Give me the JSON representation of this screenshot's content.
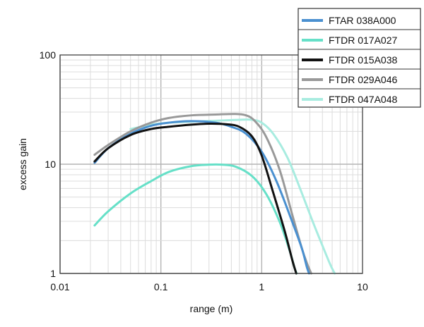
{
  "chart_data": {
    "type": "line",
    "xlabel": "range (m)",
    "ylabel": "excess gain",
    "x_scale": "log",
    "y_scale": "log",
    "xlim": [
      0.01,
      10
    ],
    "ylim": [
      1,
      100
    ],
    "x_ticks": [
      {
        "value": 0.01,
        "label": "0.01"
      },
      {
        "value": 0.1,
        "label": "0.1"
      },
      {
        "value": 1,
        "label": "1"
      },
      {
        "value": 10,
        "label": "10"
      }
    ],
    "y_ticks": [
      {
        "value": 1,
        "label": "1"
      },
      {
        "value": 10,
        "label": "10"
      },
      {
        "value": 100,
        "label": "100"
      }
    ],
    "grid": true,
    "legend_position": "top-right",
    "series": [
      {
        "name": "FTAR 038A000",
        "color": "#4a90d0",
        "x": [
          0.022,
          0.03,
          0.05,
          0.08,
          0.12,
          0.2,
          0.35,
          0.5,
          0.7,
          1.0,
          1.4,
          2.0,
          2.5,
          2.8,
          2.95
        ],
        "y": [
          10.3,
          14,
          19,
          22.5,
          24,
          24.8,
          24,
          22,
          19,
          13,
          7,
          3,
          1.7,
          1.15,
          1
        ]
      },
      {
        "name": "FTDR 017A027",
        "color": "#66e0c8",
        "x": [
          0.022,
          0.03,
          0.05,
          0.08,
          0.12,
          0.2,
          0.3,
          0.4,
          0.55,
          0.8,
          1.1,
          1.5,
          1.9,
          2.1,
          2.22
        ],
        "y": [
          2.75,
          3.7,
          5.4,
          7,
          8.5,
          9.6,
          9.9,
          9.9,
          9.5,
          7.8,
          5.4,
          3,
          1.6,
          1.15,
          1
        ]
      },
      {
        "name": "FTDR 015A038",
        "color": "#111111",
        "x": [
          0.022,
          0.03,
          0.05,
          0.08,
          0.12,
          0.2,
          0.3,
          0.45,
          0.6,
          0.8,
          1.0,
          1.3,
          1.7,
          2.0,
          2.2
        ],
        "y": [
          10.6,
          14,
          18.5,
          21,
          22,
          23,
          23.5,
          23.2,
          22,
          18,
          12,
          5.5,
          2.4,
          1.35,
          1
        ]
      },
      {
        "name": "FTDR 029A046",
        "color": "#999999",
        "x": [
          0.022,
          0.03,
          0.05,
          0.08,
          0.12,
          0.2,
          0.35,
          0.55,
          0.7,
          0.85,
          1.1,
          1.5,
          2.0,
          2.5,
          2.85,
          3.1
        ],
        "y": [
          12.2,
          15,
          20,
          24,
          26.5,
          28,
          28.5,
          28.8,
          28,
          25,
          18,
          9,
          3.5,
          1.7,
          1.2,
          1
        ]
      },
      {
        "name": "FTDR 047A048",
        "color": "#a8ece0",
        "x": [
          0.05,
          0.08,
          0.12,
          0.2,
          0.35,
          0.6,
          0.8,
          1.0,
          1.3,
          1.8,
          2.4,
          3.2,
          4.0,
          4.8,
          5.3
        ],
        "y": [
          21,
          23,
          24,
          24.5,
          25,
          25.5,
          25.5,
          24,
          19,
          11.5,
          6,
          3,
          1.8,
          1.2,
          1
        ]
      }
    ]
  }
}
